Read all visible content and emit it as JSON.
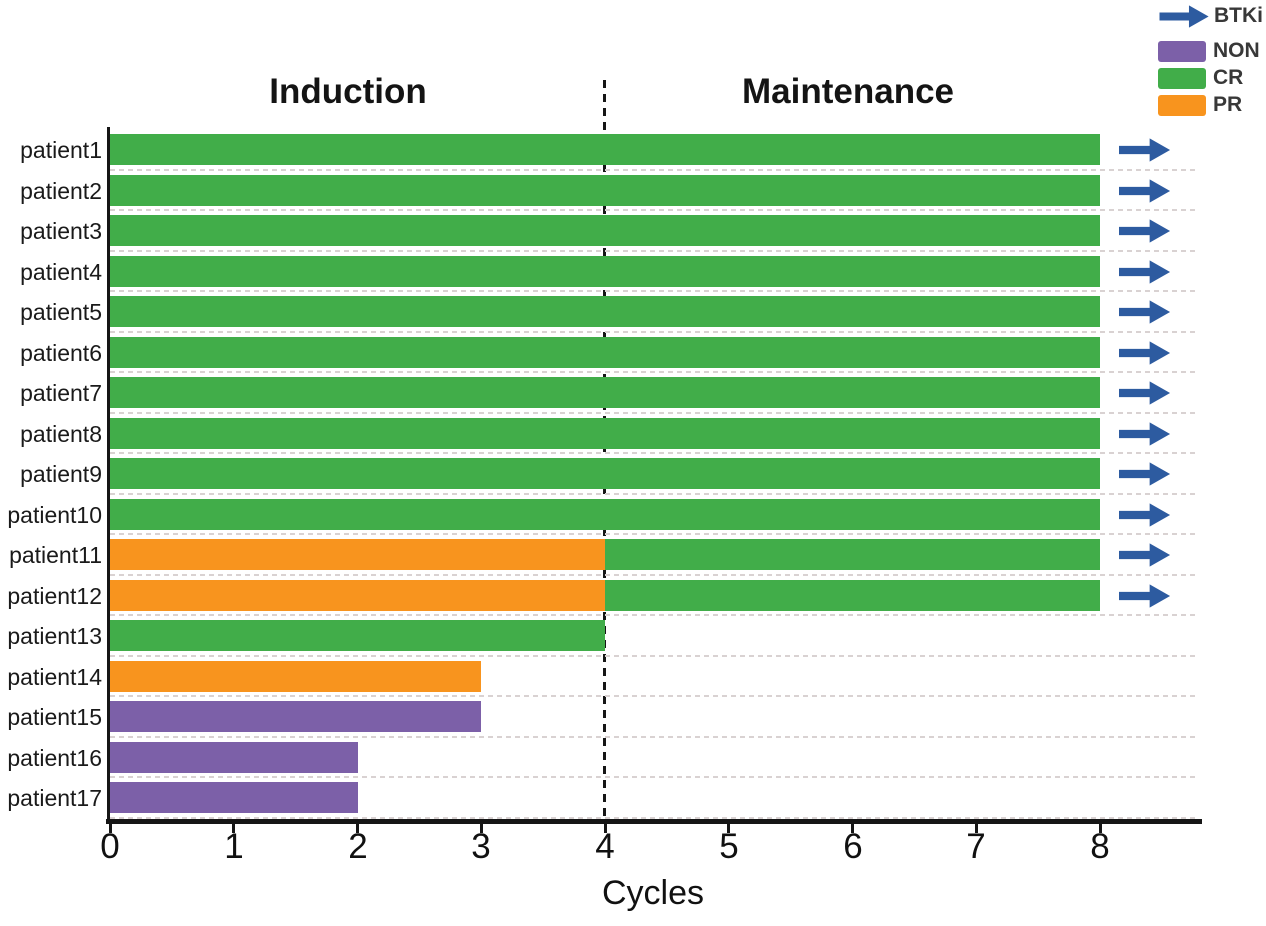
{
  "legend": {
    "items": [
      {
        "label": "BTKi",
        "type": "arrow",
        "color": "#2d5ba0"
      },
      {
        "label": "NON",
        "type": "patch",
        "color": "#7c60a8"
      },
      {
        "label": "CR",
        "type": "patch",
        "color": "#41ad49"
      },
      {
        "label": "PR",
        "type": "patch",
        "color": "#f8941e"
      }
    ],
    "text_color": "#383838"
  },
  "chart_data": {
    "type": "bar",
    "orientation": "horizontal",
    "xlabel": "Cycles",
    "x_ticks": [
      0,
      1,
      2,
      3,
      4,
      5,
      6,
      7,
      8
    ],
    "xlim": [
      0,
      8.8
    ],
    "grid": "horizontal-dotted",
    "legend_position": "top-right",
    "phases": [
      {
        "label": "Induction",
        "x_start": 0,
        "x_end": 4
      },
      {
        "label": "Maintenance",
        "x_start": 4,
        "x_end": 8.8
      }
    ],
    "phase_divider_x": 4,
    "status_colors": {
      "CR": "#41ad49",
      "PR": "#f8941e",
      "NON": "#7c60a8"
    },
    "arrow_color": "#2d5ba0",
    "patients": [
      {
        "label": "patient1",
        "segments": [
          {
            "status": "CR",
            "start": 0,
            "end": 8
          }
        ],
        "btki": true
      },
      {
        "label": "patient2",
        "segments": [
          {
            "status": "CR",
            "start": 0,
            "end": 8
          }
        ],
        "btki": true
      },
      {
        "label": "patient3",
        "segments": [
          {
            "status": "CR",
            "start": 0,
            "end": 8
          }
        ],
        "btki": true
      },
      {
        "label": "patient4",
        "segments": [
          {
            "status": "CR",
            "start": 0,
            "end": 8
          }
        ],
        "btki": true
      },
      {
        "label": "patient5",
        "segments": [
          {
            "status": "CR",
            "start": 0,
            "end": 8
          }
        ],
        "btki": true
      },
      {
        "label": "patient6",
        "segments": [
          {
            "status": "CR",
            "start": 0,
            "end": 8
          }
        ],
        "btki": true
      },
      {
        "label": "patient7",
        "segments": [
          {
            "status": "CR",
            "start": 0,
            "end": 8
          }
        ],
        "btki": true
      },
      {
        "label": "patient8",
        "segments": [
          {
            "status": "CR",
            "start": 0,
            "end": 8
          }
        ],
        "btki": true
      },
      {
        "label": "patient9",
        "segments": [
          {
            "status": "CR",
            "start": 0,
            "end": 8
          }
        ],
        "btki": true
      },
      {
        "label": "patient10",
        "segments": [
          {
            "status": "CR",
            "start": 0,
            "end": 8
          }
        ],
        "btki": true
      },
      {
        "label": "patient11",
        "segments": [
          {
            "status": "PR",
            "start": 0,
            "end": 4
          },
          {
            "status": "CR",
            "start": 4,
            "end": 8
          }
        ],
        "btki": true
      },
      {
        "label": "patient12",
        "segments": [
          {
            "status": "PR",
            "start": 0,
            "end": 4
          },
          {
            "status": "CR",
            "start": 4,
            "end": 8
          }
        ],
        "btki": true
      },
      {
        "label": "patient13",
        "segments": [
          {
            "status": "CR",
            "start": 0,
            "end": 4
          }
        ],
        "btki": false
      },
      {
        "label": "patient14",
        "segments": [
          {
            "status": "PR",
            "start": 0,
            "end": 3
          }
        ],
        "btki": false
      },
      {
        "label": "patient15",
        "segments": [
          {
            "status": "NON",
            "start": 0,
            "end": 3
          }
        ],
        "btki": false
      },
      {
        "label": "patient16",
        "segments": [
          {
            "status": "NON",
            "start": 0,
            "end": 2
          }
        ],
        "btki": false
      },
      {
        "label": "patient17",
        "segments": [
          {
            "status": "NON",
            "start": 0,
            "end": 2
          }
        ],
        "btki": false
      }
    ]
  }
}
